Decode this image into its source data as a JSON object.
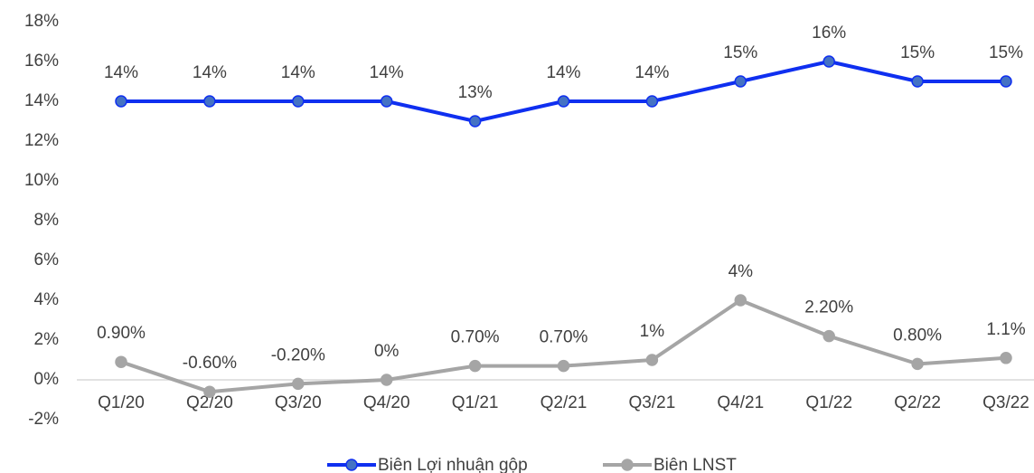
{
  "chart_data": {
    "type": "line",
    "categories": [
      "Q1/20",
      "Q2/20",
      "Q3/20",
      "Q4/20",
      "Q1/21",
      "Q2/21",
      "Q3/21",
      "Q4/21",
      "Q1/22",
      "Q2/22",
      "Q3/22"
    ],
    "series": [
      {
        "name": "Biên Lợi nhuận gộp",
        "color": "#0f2ff0",
        "marker_color": "#4472c4",
        "values": [
          14,
          14,
          14,
          14,
          13,
          14,
          14,
          15,
          16,
          15,
          15
        ],
        "value_labels": [
          "14%",
          "14%",
          "14%",
          "14%",
          "13%",
          "14%",
          "14%",
          "15%",
          "16%",
          "15%",
          "15%"
        ]
      },
      {
        "name": "Biên LNST",
        "color": "#a5a5a5",
        "marker_color": "#a5a5a5",
        "values": [
          0.9,
          -0.6,
          -0.2,
          0,
          0.7,
          0.7,
          1,
          4,
          2.2,
          0.8,
          1.1
        ],
        "value_labels": [
          "0.90%",
          "-0.60%",
          "-0.20%",
          "0%",
          "0.70%",
          "0.70%",
          "1%",
          "4%",
          "2.20%",
          "0.80%",
          "1.1%"
        ]
      }
    ],
    "ylim": [
      -2,
      18
    ],
    "yticks": [
      {
        "value": -2,
        "label": "-2%"
      },
      {
        "value": 0,
        "label": "0%"
      },
      {
        "value": 2,
        "label": "2%"
      },
      {
        "value": 4,
        "label": "4%"
      },
      {
        "value": 6,
        "label": "6%"
      },
      {
        "value": 8,
        "label": "8%"
      },
      {
        "value": 10,
        "label": "10%"
      },
      {
        "value": 12,
        "label": "12%"
      },
      {
        "value": 14,
        "label": "14%"
      },
      {
        "value": 16,
        "label": "16%"
      },
      {
        "value": 18,
        "label": "18%"
      }
    ],
    "grid": false,
    "legend": "bottom"
  }
}
